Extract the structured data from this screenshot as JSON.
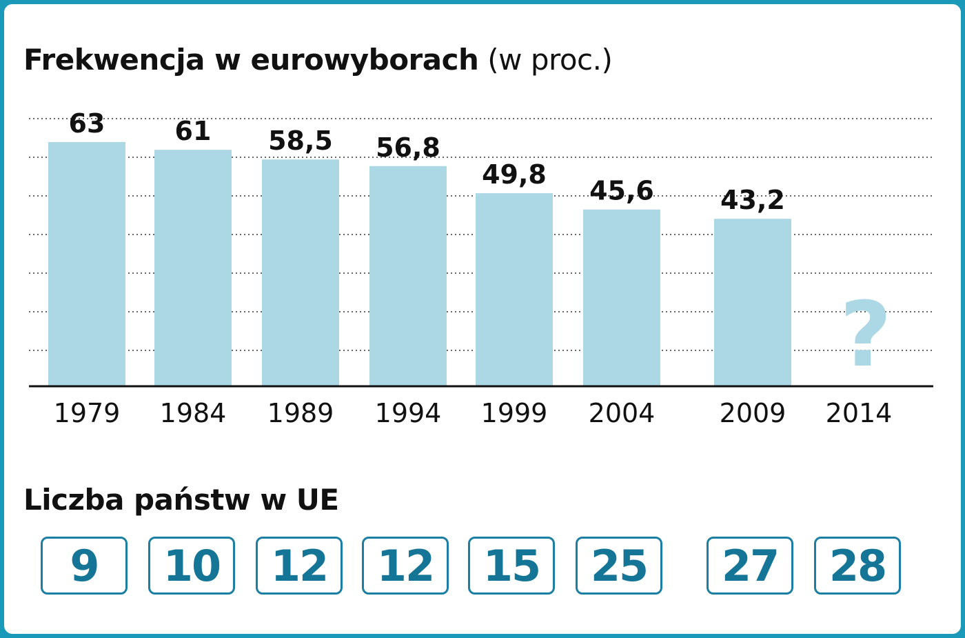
{
  "header": {
    "title_bold": "Frekwencja w eurowyborach",
    "title_unit": "(w proc.)"
  },
  "chart_data": {
    "type": "bar",
    "categories": [
      "1979",
      "1984",
      "1989",
      "1994",
      "1999",
      "2004",
      "2009",
      "2014"
    ],
    "values": [
      63,
      61,
      58.5,
      56.8,
      49.8,
      45.6,
      43.2,
      null
    ],
    "value_labels": [
      "63",
      "61",
      "58,5",
      "56,8",
      "49,8",
      "45,6",
      "43,2",
      "?"
    ],
    "ylim": [
      0,
      70
    ],
    "grid": true,
    "bar_color": "#acd8e6",
    "unknown_color": "#acd8e6"
  },
  "states": {
    "title": "Liczba państw w UE",
    "counts": [
      "9",
      "10",
      "12",
      "12",
      "15",
      "25",
      "27",
      "28"
    ],
    "box_color": "#1a7fa3"
  },
  "colors": {
    "frame": "#1a9ab8",
    "text": "#111111"
  }
}
